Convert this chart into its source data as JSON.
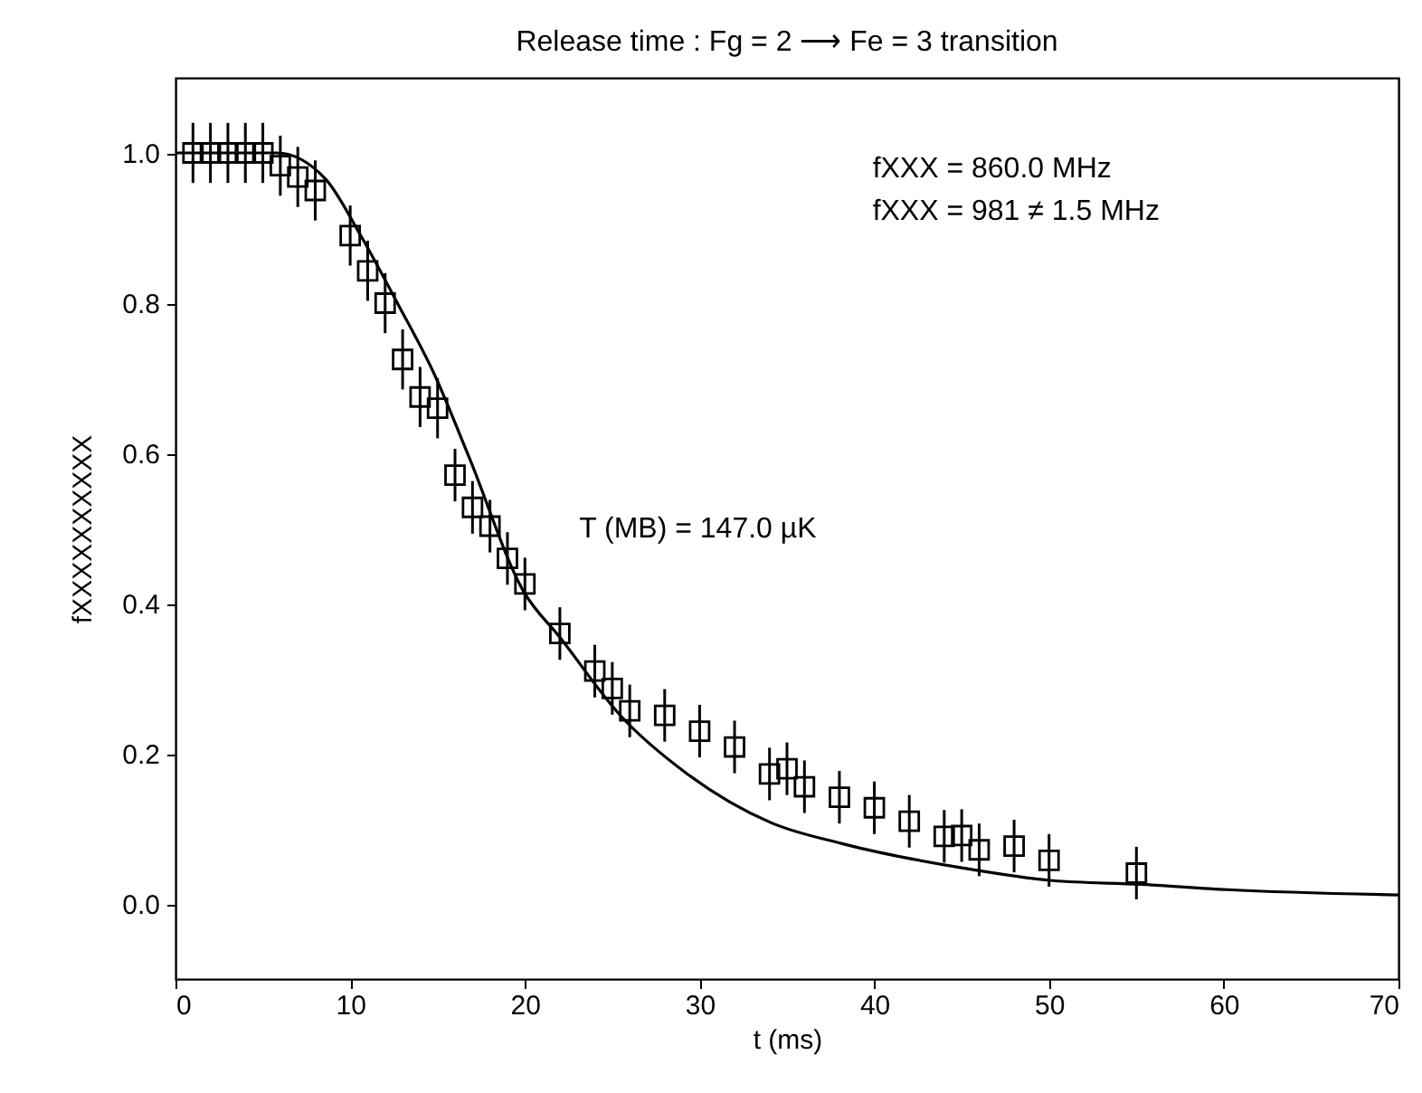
{
  "chart_data": {
    "type": "scatter",
    "title": "Release time : Fg = 2 ⟶ Fe = 3 transition",
    "xlabel": "t (ms)",
    "ylabel": "fXXXXXXXXXX",
    "annotations": [
      "fXXX = 860.0 MHz",
      "fXXX = 981 ≠ 1.5 MHz",
      "T (MB) = 147.0 µK"
    ],
    "xlim": [
      0,
      70
    ],
    "ylim": [
      -0.1,
      1.1
    ],
    "xticks": [
      0,
      10,
      20,
      30,
      40,
      50,
      60,
      70
    ],
    "yticks": [
      {
        "value": 0,
        "label": "0.0"
      },
      {
        "value": 0.2,
        "label": "0.2"
      },
      {
        "value": 0.4,
        "label": "0.4"
      },
      {
        "value": 0.6,
        "label": "0.6"
      },
      {
        "value": 0.8,
        "label": "0.8"
      },
      {
        "value": 1,
        "label": "1.0"
      }
    ],
    "grid": false,
    "series": [
      {
        "marker": "square",
        "color": "#000000",
        "x": [
          1,
          2,
          3,
          4,
          5,
          6,
          7,
          8,
          10,
          11,
          12,
          13,
          14,
          15,
          16,
          17,
          18,
          19,
          20,
          22,
          24,
          25,
          26,
          28,
          30,
          32,
          34,
          35,
          36,
          38,
          40,
          42,
          44,
          45,
          46,
          48,
          50,
          55
        ],
        "values": [
          1.0,
          1.0,
          1.0,
          1.0,
          1.0,
          0.983,
          0.968,
          0.95,
          0.89,
          0.843,
          0.8,
          0.725,
          0.675,
          0.66,
          0.571,
          0.528,
          0.503,
          0.46,
          0.426,
          0.36,
          0.31,
          0.287,
          0.257,
          0.251,
          0.23,
          0.209,
          0.173,
          0.18,
          0.156,
          0.142,
          0.128,
          0.11,
          0.09,
          0.091,
          0.072,
          0.077,
          0.058,
          0.041
        ],
        "errors": [
          0.04,
          0.04,
          0.04,
          0.04,
          0.04,
          0.04,
          0.04,
          0.04,
          0.04,
          0.04,
          0.04,
          0.04,
          0.04,
          0.04,
          0.035,
          0.035,
          0.035,
          0.035,
          0.035,
          0.035,
          0.035,
          0.035,
          0.035,
          0.035,
          0.035,
          0.035,
          0.035,
          0.035,
          0.035,
          0.035,
          0.035,
          0.035,
          0.035,
          0.035,
          0.035,
          0.035,
          0.035,
          0.035
        ]
      },
      {
        "type": "line",
        "line_style": "solid",
        "color": "#000000",
        "x": [
          0,
          5.8,
          8.6,
          10.6,
          12.7,
          14.8,
          16.8,
          19.9,
          22,
          25.5,
          29.3,
          34.1,
          38.2,
          45,
          50.2,
          55.3,
          60.2,
          70
        ],
        "values": [
          1.0,
          1.0,
          0.965,
          0.89,
          0.8,
          0.706,
          0.595,
          0.417,
          0.355,
          0.25,
          0.173,
          0.108,
          0.08,
          0.048,
          0.031,
          0.026,
          0.019,
          0.012
        ]
      }
    ]
  }
}
